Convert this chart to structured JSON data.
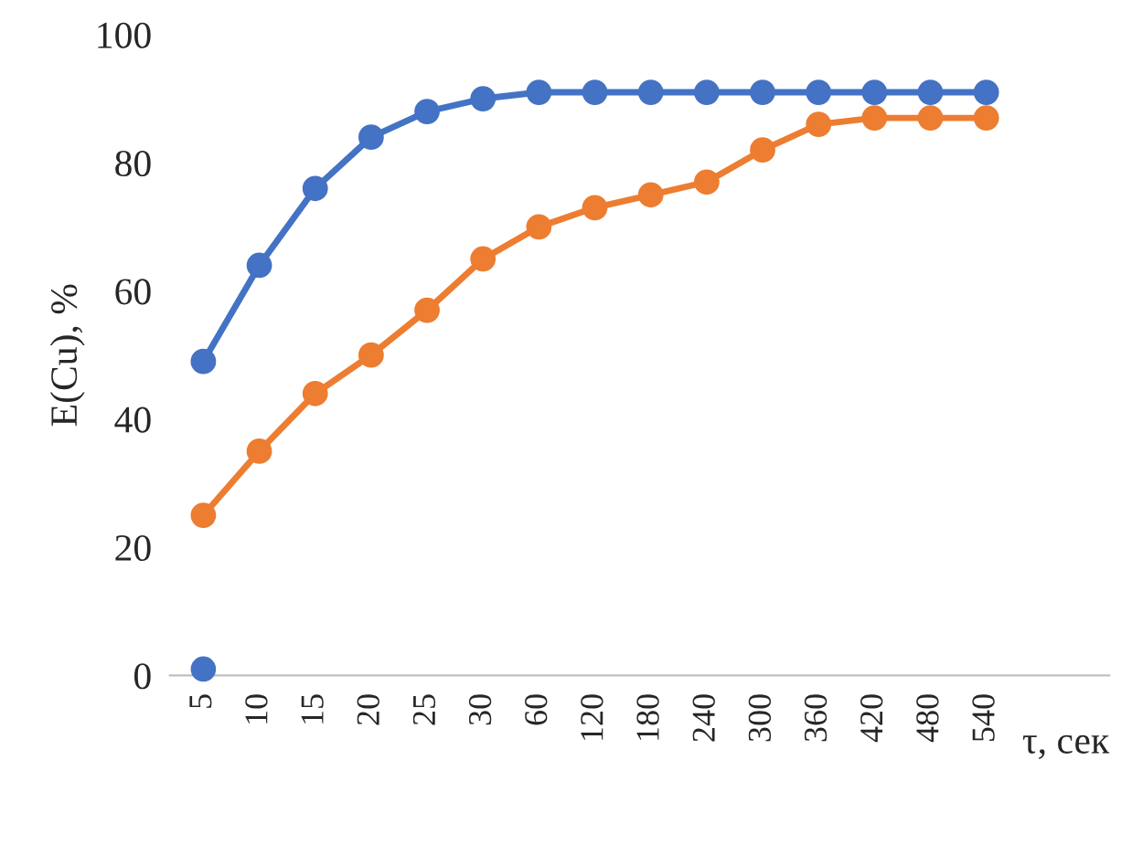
{
  "chart_data": {
    "type": "line",
    "xlabel": "τ, сек",
    "ylabel": "E(Cu), %",
    "categories": [
      "5",
      "10",
      "15",
      "20",
      "25",
      "30",
      "60",
      "120",
      "180",
      "240",
      "300",
      "360",
      "420",
      "480",
      "540"
    ],
    "series": [
      {
        "color": "#ed7d31",
        "values": [
          25,
          35,
          44,
          50,
          57,
          65,
          70,
          73,
          75,
          77,
          82,
          86,
          87,
          87,
          87
        ]
      },
      {
        "color": "#4472c4",
        "values": [
          49,
          64,
          76,
          84,
          88,
          90,
          91,
          91,
          91,
          91,
          91,
          91,
          91,
          91,
          91
        ]
      },
      {
        "type": "scatter",
        "color": "#4472c4",
        "values": [
          1,
          null,
          null,
          null,
          null,
          null,
          null,
          null,
          null,
          null,
          null,
          null,
          null,
          null,
          null
        ]
      }
    ],
    "ylim": [
      0,
      100
    ],
    "yticks": [
      0,
      20,
      40,
      60,
      80,
      100
    ],
    "marker": "circle",
    "line_style": "solid"
  }
}
